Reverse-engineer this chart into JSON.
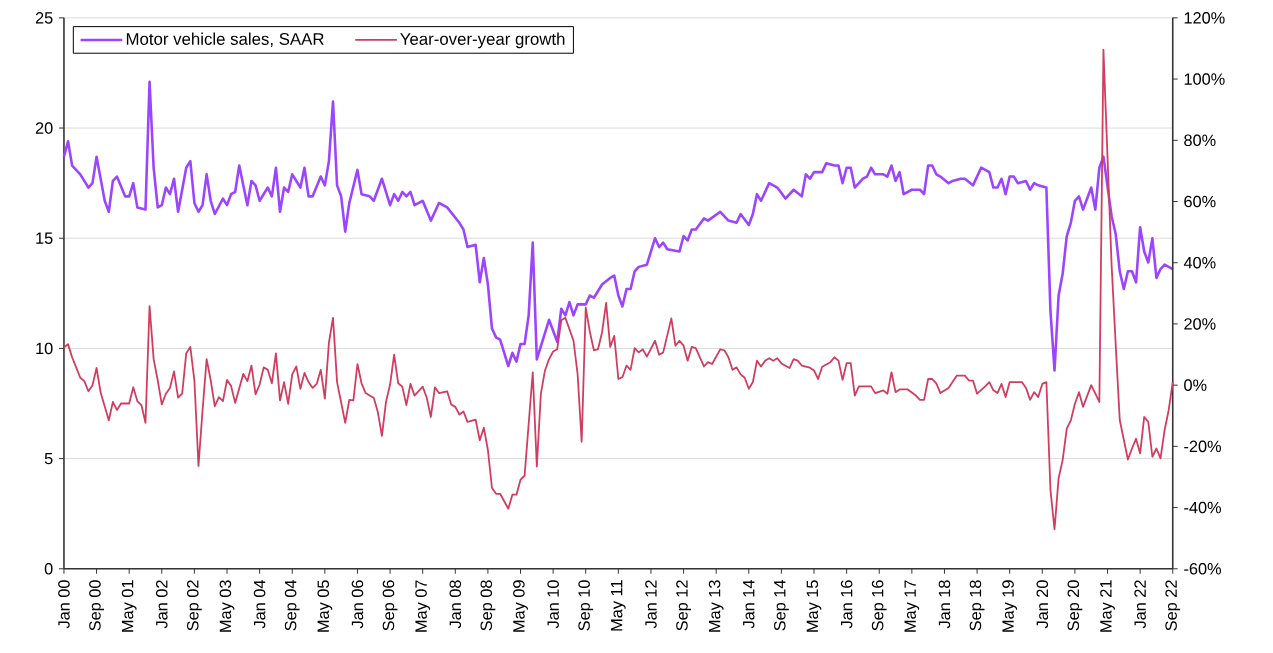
{
  "chart_data": {
    "type": "line",
    "xlim": [
      "2000-01",
      "2022-09"
    ],
    "xticks": [
      {
        "value": "2000-01",
        "label": "Jan 00"
      },
      {
        "value": "2000-09",
        "label": "Sep 00"
      },
      {
        "value": "2001-05",
        "label": "May 01"
      },
      {
        "value": "2002-01",
        "label": "Jan 02"
      },
      {
        "value": "2002-09",
        "label": "Sep 02"
      },
      {
        "value": "2003-05",
        "label": "May 03"
      },
      {
        "value": "2004-01",
        "label": "Jan 04"
      },
      {
        "value": "2004-09",
        "label": "Sep 04"
      },
      {
        "value": "2005-05",
        "label": "May 05"
      },
      {
        "value": "2006-01",
        "label": "Jan 06"
      },
      {
        "value": "2006-09",
        "label": "Sep 06"
      },
      {
        "value": "2007-05",
        "label": "May 07"
      },
      {
        "value": "2008-01",
        "label": "Jan 08"
      },
      {
        "value": "2008-09",
        "label": "Sep 08"
      },
      {
        "value": "2009-05",
        "label": "May 09"
      },
      {
        "value": "2010-01",
        "label": "Jan 10"
      },
      {
        "value": "2010-09",
        "label": "Sep 10"
      },
      {
        "value": "2011-05",
        "label": "May 11"
      },
      {
        "value": "2012-01",
        "label": "Jan 12"
      },
      {
        "value": "2012-09",
        "label": "Sep 12"
      },
      {
        "value": "2013-05",
        "label": "May 13"
      },
      {
        "value": "2014-01",
        "label": "Jan 14"
      },
      {
        "value": "2014-09",
        "label": "Sep 14"
      },
      {
        "value": "2015-05",
        "label": "May 15"
      },
      {
        "value": "2016-01",
        "label": "Jan 16"
      },
      {
        "value": "2016-09",
        "label": "Sep 16"
      },
      {
        "value": "2017-05",
        "label": "May 17"
      },
      {
        "value": "2018-01",
        "label": "Jan 18"
      },
      {
        "value": "2018-09",
        "label": "Sep 18"
      },
      {
        "value": "2019-05",
        "label": "May 19"
      },
      {
        "value": "2020-01",
        "label": "Jan 20"
      },
      {
        "value": "2020-09",
        "label": "Sep 20"
      },
      {
        "value": "2021-05",
        "label": "May 21"
      },
      {
        "value": "2022-01",
        "label": "Jan 22"
      },
      {
        "value": "2022-09",
        "label": "Sep 22"
      }
    ],
    "ylim": [
      0,
      25
    ],
    "yticks": [
      0,
      5,
      10,
      15,
      20,
      25
    ],
    "y2lim": [
      -60,
      120
    ],
    "y2ticks": [
      {
        "value": -60,
        "label": "-60%"
      },
      {
        "value": -40,
        "label": "-40%"
      },
      {
        "value": -20,
        "label": "-20%"
      },
      {
        "value": 0,
        "label": "0%"
      },
      {
        "value": 20,
        "label": "20%"
      },
      {
        "value": 40,
        "label": "40%"
      },
      {
        "value": 60,
        "label": "60%"
      },
      {
        "value": 80,
        "label": "80%"
      },
      {
        "value": 100,
        "label": "100%"
      },
      {
        "value": 120,
        "label": "120%"
      }
    ],
    "grid": "y",
    "legend": "top left",
    "series": [
      {
        "name": "Motor vehicle sales, SAAR",
        "color": "#9b45ff",
        "x": [
          "2000-01",
          "2000-02",
          "2000-03",
          "2000-05",
          "2000-07",
          "2000-08",
          "2000-09",
          "2000-11",
          "2000-12",
          "2001-01",
          "2001-02",
          "2001-04",
          "2001-05",
          "2001-06",
          "2001-07",
          "2001-09",
          "2001-10",
          "2001-11",
          "2001-12",
          "2002-01",
          "2002-02",
          "2002-03",
          "2002-04",
          "2002-05",
          "2002-07",
          "2002-08",
          "2002-09",
          "2002-10",
          "2002-11",
          "2002-12",
          "2003-01",
          "2003-02",
          "2003-04",
          "2003-05",
          "2003-06",
          "2003-07",
          "2003-08",
          "2003-10",
          "2003-11",
          "2003-12",
          "2004-01",
          "2004-03",
          "2004-04",
          "2004-05",
          "2004-06",
          "2004-07",
          "2004-08",
          "2004-09",
          "2004-11",
          "2004-12",
          "2005-01",
          "2005-02",
          "2005-04",
          "2005-05",
          "2005-06",
          "2005-07",
          "2005-08",
          "2005-09",
          "2005-10",
          "2005-11",
          "2006-01",
          "2006-02",
          "2006-04",
          "2006-05",
          "2006-07",
          "2006-09",
          "2006-10",
          "2006-11",
          "2006-12",
          "2007-01",
          "2007-02",
          "2007-03",
          "2007-05",
          "2007-07",
          "2007-09",
          "2007-11",
          "2008-02",
          "2008-03",
          "2008-04",
          "2008-06",
          "2008-07",
          "2008-08",
          "2008-09",
          "2008-10",
          "2008-11",
          "2008-12",
          "2009-02",
          "2009-03",
          "2009-04",
          "2009-05",
          "2009-06",
          "2009-07",
          "2009-08",
          "2009-09",
          "2009-11",
          "2009-12",
          "2010-02",
          "2010-03",
          "2010-04",
          "2010-05",
          "2010-06",
          "2010-07",
          "2010-09",
          "2010-10",
          "2010-11",
          "2011-01",
          "2011-03",
          "2011-04",
          "2011-05",
          "2011-06",
          "2011-07",
          "2011-08",
          "2011-09",
          "2011-10",
          "2011-12",
          "2012-02",
          "2012-03",
          "2012-04",
          "2012-05",
          "2012-08",
          "2012-09",
          "2012-10",
          "2012-11",
          "2012-12",
          "2013-02",
          "2013-03",
          "2013-06",
          "2013-08",
          "2013-10",
          "2013-11",
          "2014-01",
          "2014-02",
          "2014-03",
          "2014-04",
          "2014-06",
          "2014-08",
          "2014-10",
          "2014-12",
          "2015-02",
          "2015-03",
          "2015-04",
          "2015-05",
          "2015-07",
          "2015-08",
          "2015-10",
          "2015-11",
          "2015-12",
          "2016-01",
          "2016-02",
          "2016-03",
          "2016-05",
          "2016-06",
          "2016-07",
          "2016-08",
          "2016-10",
          "2016-11",
          "2016-12",
          "2017-01",
          "2017-02",
          "2017-03",
          "2017-05",
          "2017-06",
          "2017-07",
          "2017-08",
          "2017-09",
          "2017-10",
          "2017-11",
          "2017-12",
          "2018-02",
          "2018-03",
          "2018-05",
          "2018-06",
          "2018-08",
          "2018-10",
          "2018-12",
          "2019-01",
          "2019-02",
          "2019-03",
          "2019-04",
          "2019-05",
          "2019-06",
          "2019-07",
          "2019-09",
          "2019-10",
          "2019-11",
          "2019-12",
          "2020-02",
          "2020-03",
          "2020-04",
          "2020-05",
          "2020-06",
          "2020-07",
          "2020-08",
          "2020-09",
          "2020-10",
          "2020-11",
          "2021-01",
          "2021-02",
          "2021-03",
          "2021-04",
          "2021-06",
          "2021-07",
          "2021-08",
          "2021-09",
          "2021-10",
          "2021-11",
          "2021-12",
          "2022-01",
          "2022-02",
          "2022-03",
          "2022-04",
          "2022-05",
          "2022-06",
          "2022-07",
          "2022-09"
        ],
        "values": [
          18.7,
          19.4,
          18.3,
          17.9,
          17.3,
          17.5,
          18.7,
          16.7,
          16.2,
          17.6,
          17.8,
          16.9,
          16.9,
          17.5,
          16.4,
          16.3,
          22.1,
          18.2,
          16.4,
          16.5,
          17.3,
          17.0,
          17.7,
          16.2,
          18.2,
          18.5,
          16.6,
          16.2,
          16.5,
          17.9,
          16.7,
          16.1,
          16.8,
          16.5,
          17.0,
          17.1,
          18.3,
          16.5,
          17.6,
          17.4,
          16.7,
          17.3,
          16.9,
          18.2,
          16.2,
          17.3,
          17.1,
          17.9,
          17.3,
          18.2,
          16.9,
          16.9,
          17.8,
          17.4,
          18.5,
          21.2,
          17.4,
          16.9,
          15.3,
          16.6,
          18.1,
          17.0,
          16.9,
          16.7,
          17.7,
          16.5,
          17.0,
          16.7,
          17.1,
          16.9,
          17.1,
          16.5,
          16.7,
          15.8,
          16.6,
          16.4,
          15.7,
          15.4,
          14.6,
          14.7,
          13.0,
          14.1,
          12.9,
          10.9,
          10.5,
          10.4,
          9.2,
          9.8,
          9.4,
          10.2,
          10.2,
          11.5,
          14.8,
          9.5,
          10.7,
          11.3,
          10.3,
          11.8,
          11.5,
          12.1,
          11.5,
          12.0,
          12.0,
          12.4,
          12.3,
          12.9,
          13.2,
          13.3,
          12.4,
          11.9,
          12.7,
          12.7,
          13.5,
          13.7,
          13.8,
          15.0,
          14.6,
          14.8,
          14.5,
          14.4,
          15.1,
          14.9,
          15.4,
          15.4,
          15.9,
          15.8,
          16.2,
          15.8,
          15.7,
          16.1,
          15.6,
          16.1,
          17.0,
          16.7,
          17.5,
          17.3,
          16.8,
          17.2,
          16.9,
          17.9,
          17.7,
          18.0,
          18.0,
          18.4,
          18.3,
          18.3,
          17.5,
          18.2,
          18.2,
          17.3,
          17.7,
          17.8,
          18.2,
          17.9,
          17.9,
          17.8,
          18.3,
          17.6,
          18.0,
          17.0,
          17.2,
          17.2,
          17.2,
          17.0,
          18.3,
          18.3,
          17.9,
          17.8,
          17.5,
          17.6,
          17.7,
          17.7,
          17.4,
          18.2,
          18.0,
          17.3,
          17.3,
          17.7,
          17.0,
          17.8,
          17.8,
          17.5,
          17.6,
          17.2,
          17.5,
          17.4,
          17.3,
          11.7,
          9.0,
          12.4,
          13.4,
          15.1,
          15.7,
          16.7,
          16.9,
          16.3,
          17.3,
          16.3,
          18.2,
          18.7,
          16.0,
          15.2,
          13.5,
          12.7,
          13.5,
          13.5,
          13.0,
          15.5,
          14.4,
          13.9,
          15.0,
          13.2,
          13.6,
          13.8,
          13.6
        ]
      },
      {
        "name": "Year-over-year growth",
        "color": "#d03d5f",
        "axis": "y2",
        "x": [
          "2000-01",
          "2000-02",
          "2000-03",
          "2000-04",
          "2000-05",
          "2000-06",
          "2000-07",
          "2000-08",
          "2000-09",
          "2000-10",
          "2000-12",
          "2001-01",
          "2001-02",
          "2001-03",
          "2001-05",
          "2001-06",
          "2001-07",
          "2001-08",
          "2001-09",
          "2001-10",
          "2001-11",
          "2001-12",
          "2002-01",
          "2002-02",
          "2002-03",
          "2002-04",
          "2002-05",
          "2002-06",
          "2002-07",
          "2002-08",
          "2002-09",
          "2002-10",
          "2002-11",
          "2002-12",
          "2003-01",
          "2003-02",
          "2003-03",
          "2003-04",
          "2003-05",
          "2003-06",
          "2003-07",
          "2003-09",
          "2003-10",
          "2003-11",
          "2003-12",
          "2004-01",
          "2004-02",
          "2004-03",
          "2004-04",
          "2004-05",
          "2004-06",
          "2004-07",
          "2004-08",
          "2004-09",
          "2004-10",
          "2004-11",
          "2004-12",
          "2005-01",
          "2005-02",
          "2005-03",
          "2005-04",
          "2005-05",
          "2005-06",
          "2005-07",
          "2005-08",
          "2005-10",
          "2005-11",
          "2005-12",
          "2006-01",
          "2006-02",
          "2006-03",
          "2006-04",
          "2006-05",
          "2006-06",
          "2006-07",
          "2006-08",
          "2006-09",
          "2006-10",
          "2006-11",
          "2006-12",
          "2007-01",
          "2007-02",
          "2007-03",
          "2007-05",
          "2007-06",
          "2007-07",
          "2007-08",
          "2007-09",
          "2007-11",
          "2007-12",
          "2008-01",
          "2008-02",
          "2008-03",
          "2008-04",
          "2008-06",
          "2008-07",
          "2008-08",
          "2008-09",
          "2008-10",
          "2008-11",
          "2008-12",
          "2009-02",
          "2009-03",
          "2009-04",
          "2009-05",
          "2009-06",
          "2009-08",
          "2009-09",
          "2009-10",
          "2009-11",
          "2009-12",
          "2010-01",
          "2010-02",
          "2010-03",
          "2010-04",
          "2010-05",
          "2010-06",
          "2010-07",
          "2010-08",
          "2010-09",
          "2010-10",
          "2010-11",
          "2010-12",
          "2011-01",
          "2011-02",
          "2011-03",
          "2011-04",
          "2011-05",
          "2011-06",
          "2011-07",
          "2011-08",
          "2011-09",
          "2011-10",
          "2011-11",
          "2011-12",
          "2012-02",
          "2012-03",
          "2012-04",
          "2012-06",
          "2012-07",
          "2012-08",
          "2012-09",
          "2012-10",
          "2012-11",
          "2012-12",
          "2013-01",
          "2013-02",
          "2013-03",
          "2013-04",
          "2013-06",
          "2013-07",
          "2013-08",
          "2013-09",
          "2013-10",
          "2013-11",
          "2013-12",
          "2014-01",
          "2014-02",
          "2014-03",
          "2014-04",
          "2014-05",
          "2014-06",
          "2014-07",
          "2014-08",
          "2014-09",
          "2014-11",
          "2014-12",
          "2015-01",
          "2015-02",
          "2015-04",
          "2015-05",
          "2015-06",
          "2015-07",
          "2015-09",
          "2015-10",
          "2015-11",
          "2015-12",
          "2016-01",
          "2016-02",
          "2016-03",
          "2016-04",
          "2016-06",
          "2016-07",
          "2016-08",
          "2016-10",
          "2016-11",
          "2016-12",
          "2017-01",
          "2017-02",
          "2017-04",
          "2017-06",
          "2017-07",
          "2017-08",
          "2017-09",
          "2017-10",
          "2017-11",
          "2017-12",
          "2018-02",
          "2018-04",
          "2018-05",
          "2018-06",
          "2018-07",
          "2018-08",
          "2018-09",
          "2018-11",
          "2018-12",
          "2019-01",
          "2019-02",
          "2019-03",
          "2019-04",
          "2019-05",
          "2019-07",
          "2019-08",
          "2019-09",
          "2019-10",
          "2019-11",
          "2019-12",
          "2020-01",
          "2020-02",
          "2020-03",
          "2020-04",
          "2020-05",
          "2020-06",
          "2020-07",
          "2020-08",
          "2020-09",
          "2020-10",
          "2020-11",
          "2021-01",
          "2021-03",
          "2021-04",
          "2021-06",
          "2021-07",
          "2021-08",
          "2021-10",
          "2021-11",
          "2021-12",
          "2022-01",
          "2022-02",
          "2022-03",
          "2022-04",
          "2022-05",
          "2022-06",
          "2022-07",
          "2022-08",
          "2022-09"
        ],
        "values": [
          12.3,
          13.4,
          9.1,
          5.8,
          2.4,
          1.3,
          -2.0,
          0.0,
          5.6,
          -2.4,
          -11.5,
          -5.5,
          -8.1,
          -6.0,
          -6.0,
          -0.7,
          -5.2,
          -6.5,
          -12.3,
          25.8,
          8.5,
          1.6,
          -6.3,
          -2.8,
          -0.9,
          4.5,
          -4.1,
          -2.8,
          10.4,
          12.5,
          1.5,
          -26.4,
          -8.2,
          8.5,
          1.6,
          -6.9,
          -3.9,
          -5.2,
          1.7,
          -0.3,
          -5.8,
          3.7,
          1.3,
          6.4,
          -3.0,
          0.2,
          5.8,
          5.0,
          0.6,
          10.4,
          -5.0,
          1.0,
          -6.1,
          3.5,
          6.1,
          -1.2,
          4.0,
          1.0,
          -0.9,
          0.4,
          5.0,
          -4.4,
          13.9,
          22.0,
          1.0,
          -12.3,
          -4.8,
          -5.0,
          6.9,
          0.6,
          -2.6,
          -3.4,
          -4.1,
          -8.8,
          -16.6,
          -5.5,
          0.2,
          10.0,
          0.6,
          -0.5,
          -6.5,
          0.4,
          -3.4,
          -0.5,
          -4.1,
          -10.4,
          -0.7,
          -2.6,
          -2.0,
          -6.3,
          -7.1,
          -9.6,
          -8.6,
          -12.0,
          -11.3,
          -18.0,
          -13.9,
          -21.2,
          -33.6,
          -35.5,
          -35.5,
          -40.4,
          -35.8,
          -35.8,
          -30.9,
          -29.6,
          4.2,
          -26.6,
          -2.8,
          4.8,
          8.5,
          11.0,
          11.7,
          21.2,
          22.0,
          18.3,
          14.5,
          3.7,
          -18.5,
          25.3,
          17.5,
          11.4,
          11.7,
          17.2,
          26.9,
          12.5,
          16.1,
          2.0,
          2.6,
          6.4,
          5.0,
          12.1,
          10.7,
          11.7,
          9.3,
          14.5,
          9.9,
          10.7,
          21.8,
          12.9,
          14.5,
          12.9,
          8.0,
          12.5,
          12.1,
          9.1,
          6.1,
          7.5,
          6.9,
          11.7,
          11.4,
          9.1,
          5.0,
          5.8,
          3.5,
          2.4,
          -1.2,
          1.0,
          8.0,
          6.1,
          8.0,
          8.8,
          8.0,
          8.8,
          7.1,
          5.6,
          8.5,
          8.0,
          6.4,
          5.7,
          4.8,
          2.0,
          6.0,
          7.5,
          9.1,
          8.0,
          1.7,
          7.2,
          7.2,
          -3.4,
          -0.4,
          -0.4,
          -0.4,
          -2.6,
          -1.7,
          -2.8,
          4.2,
          -2.3,
          -1.4,
          -1.4,
          -3.4,
          -4.8,
          -4.8,
          2.0,
          2.0,
          0.6,
          -2.6,
          -0.9,
          3.1,
          3.1,
          3.1,
          1.5,
          1.5,
          -2.8,
          -0.4,
          1.0,
          -1.7,
          -2.6,
          0.4,
          -3.9,
          1.0,
          1.0,
          1.0,
          -0.9,
          -4.8,
          -2.3,
          -3.9,
          0.4,
          1.0,
          -34.2,
          -47.1,
          -30.4,
          -24.4,
          -14.2,
          -11.5,
          -6.1,
          -2.3,
          -7.1,
          0.0,
          -5.5,
          109.6,
          39.3,
          13.4,
          -11.4,
          -24.3,
          -20.7,
          -17.5,
          -22.3,
          -10.4,
          -12.0,
          -23.4,
          -20.7,
          -23.9,
          -14.7,
          -8.2,
          1.0
        ]
      }
    ]
  }
}
